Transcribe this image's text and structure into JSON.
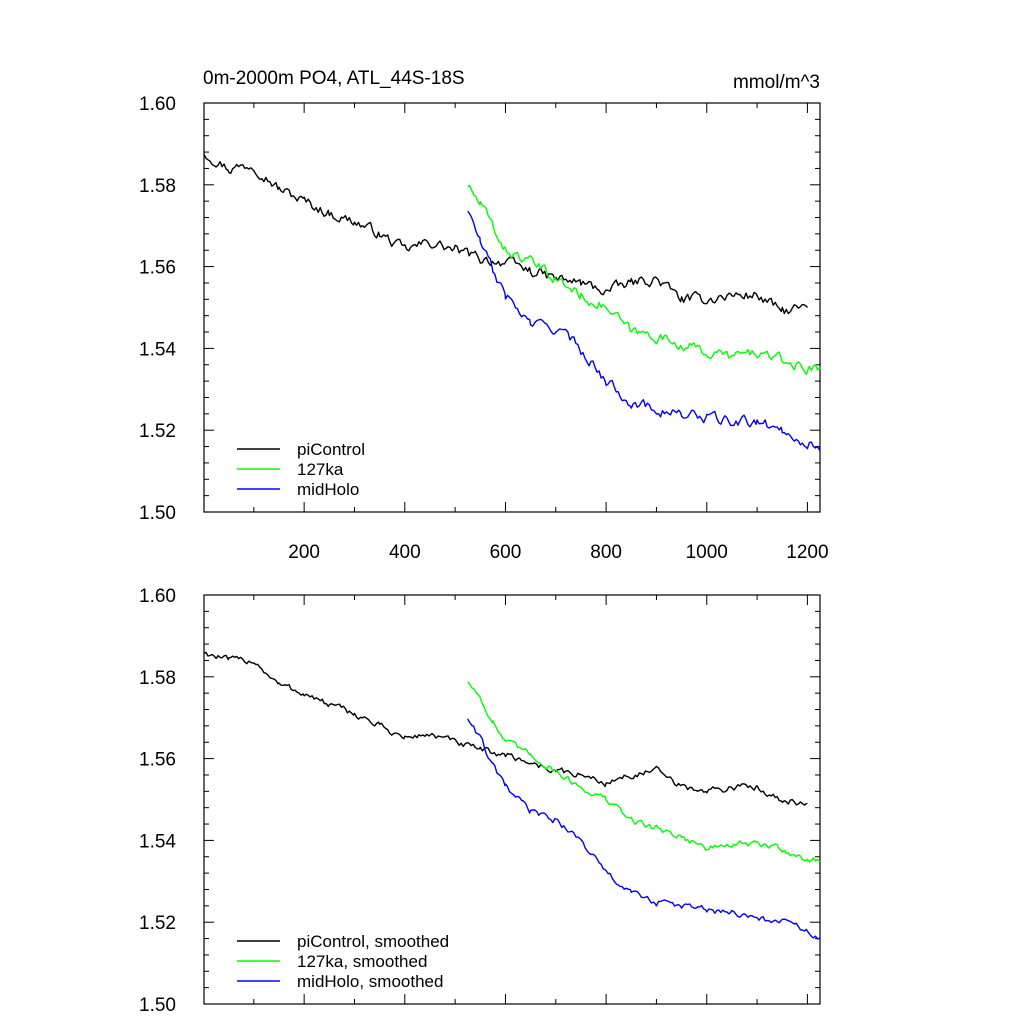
{
  "figure": {
    "left_title": "0m-2000m PO4, ATL_44S-18S",
    "right_title": "mmol/m^3"
  },
  "colors": {
    "piControl": "#000000",
    "127ka": "#00ff00",
    "midHolo": "#0000ff"
  },
  "chart_data": [
    {
      "type": "line",
      "panel": "top",
      "title": "0m-2000m PO4, ATL_44S-18S",
      "units": "mmol/m^3",
      "xlim": [
        1,
        1225
      ],
      "ylim": [
        1.5,
        1.6
      ],
      "xticks": [
        200,
        400,
        600,
        800,
        1000,
        1200
      ],
      "xtick_labels": [
        "200",
        "400",
        "600",
        "800",
        "1000",
        "1200"
      ],
      "yticks": [
        1.5,
        1.52,
        1.54,
        1.56,
        1.58,
        1.6
      ],
      "ytick_labels": [
        "1.50",
        "1.52",
        "1.54",
        "1.56",
        "1.58",
        "1.60"
      ],
      "legend_position": "bottom-left",
      "series": [
        {
          "name": "piControl",
          "color_key": "piControl",
          "x": [
            1,
            50,
            100,
            150,
            200,
            250,
            300,
            350,
            400,
            450,
            500,
            550,
            600,
            650,
            700,
            750,
            800,
            850,
            900,
            950,
            1000,
            1050,
            1100,
            1150,
            1200
          ],
          "y": [
            1.588,
            1.584,
            1.585,
            1.579,
            1.576,
            1.573,
            1.571,
            1.568,
            1.564,
            1.566,
            1.564,
            1.562,
            1.561,
            1.559,
            1.557,
            1.556,
            1.554,
            1.556,
            1.557,
            1.552,
            1.552,
            1.553,
            1.553,
            1.549,
            1.55
          ]
        },
        {
          "name": "127ka",
          "color_key": "127ka",
          "x": [
            525,
            550,
            575,
            600,
            650,
            700,
            750,
            800,
            850,
            900,
            950,
            1000,
            1050,
            1100,
            1150,
            1200,
            1225
          ],
          "y": [
            1.58,
            1.575,
            1.57,
            1.564,
            1.561,
            1.557,
            1.553,
            1.55,
            1.544,
            1.543,
            1.541,
            1.539,
            1.538,
            1.539,
            1.537,
            1.535,
            1.535
          ]
        },
        {
          "name": "midHolo",
          "color_key": "midHolo",
          "x": [
            525,
            550,
            575,
            600,
            650,
            700,
            750,
            800,
            850,
            900,
            950,
            1000,
            1050,
            1100,
            1150,
            1200,
            1225
          ],
          "y": [
            1.574,
            1.566,
            1.559,
            1.553,
            1.546,
            1.545,
            1.54,
            1.532,
            1.527,
            1.525,
            1.524,
            1.523,
            1.522,
            1.522,
            1.52,
            1.517,
            1.516
          ]
        }
      ],
      "legend": [
        {
          "label": "piControl",
          "color_key": "piControl"
        },
        {
          "label": "127ka",
          "color_key": "127ka"
        },
        {
          "label": "midHolo",
          "color_key": "midHolo"
        }
      ]
    },
    {
      "type": "line",
      "panel": "bottom",
      "xlim": [
        1,
        1225
      ],
      "ylim": [
        1.5,
        1.6
      ],
      "xticks": [
        200,
        400,
        600,
        800,
        1000,
        1200
      ],
      "yticks": [
        1.5,
        1.52,
        1.54,
        1.56,
        1.58,
        1.6
      ],
      "ytick_labels": [
        "1.50",
        "1.52",
        "1.54",
        "1.56",
        "1.58",
        "1.60"
      ],
      "legend_position": "bottom-left",
      "series": [
        {
          "name": "piControl, smoothed",
          "color_key": "piControl",
          "x": [
            1,
            50,
            100,
            150,
            200,
            250,
            300,
            350,
            400,
            450,
            500,
            550,
            600,
            650,
            700,
            750,
            800,
            850,
            900,
            950,
            1000,
            1050,
            1100,
            1150,
            1200
          ],
          "y": [
            1.586,
            1.584,
            1.584,
            1.578,
            1.576,
            1.573,
            1.571,
            1.568,
            1.565,
            1.566,
            1.564,
            1.562,
            1.561,
            1.559,
            1.557,
            1.556,
            1.554,
            1.556,
            1.557,
            1.553,
            1.552,
            1.553,
            1.553,
            1.55,
            1.549
          ]
        },
        {
          "name": "127ka, smoothed",
          "color_key": "127ka",
          "x": [
            525,
            550,
            575,
            600,
            650,
            700,
            750,
            800,
            850,
            900,
            950,
            1000,
            1050,
            1100,
            1150,
            1200,
            1225
          ],
          "y": [
            1.579,
            1.575,
            1.569,
            1.564,
            1.561,
            1.557,
            1.553,
            1.55,
            1.545,
            1.543,
            1.541,
            1.538,
            1.539,
            1.539,
            1.538,
            1.535,
            1.535
          ]
        },
        {
          "name": "midHolo, smoothed",
          "color_key": "midHolo",
          "x": [
            525,
            550,
            575,
            600,
            650,
            700,
            750,
            800,
            850,
            900,
            950,
            1000,
            1050,
            1100,
            1150,
            1200,
            1225
          ],
          "y": [
            1.57,
            1.565,
            1.558,
            1.553,
            1.547,
            1.545,
            1.54,
            1.532,
            1.527,
            1.525,
            1.524,
            1.523,
            1.522,
            1.521,
            1.52,
            1.518,
            1.516
          ]
        }
      ],
      "legend": [
        {
          "label": "piControl, smoothed",
          "color_key": "piControl"
        },
        {
          "label": "127ka, smoothed",
          "color_key": "127ka"
        },
        {
          "label": "midHolo, smoothed",
          "color_key": "midHolo"
        }
      ]
    }
  ]
}
